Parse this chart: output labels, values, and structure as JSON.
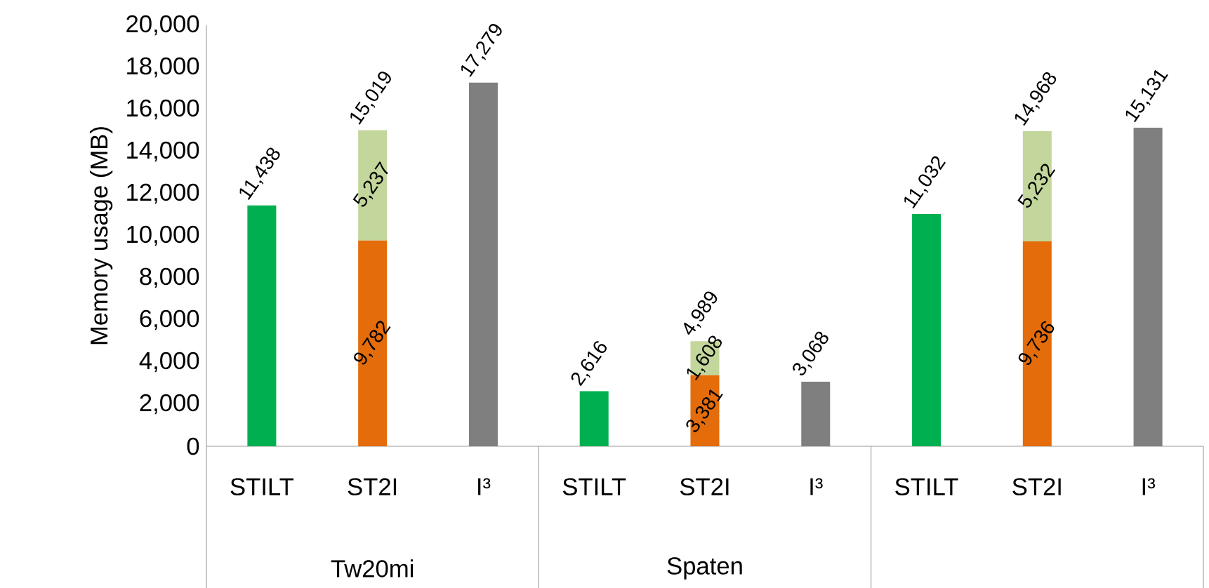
{
  "chart_data": {
    "type": "bar",
    "ylabel": "Memory usage (MB)",
    "stacked": true,
    "categories": [
      "STILT",
      "ST2I",
      "I³",
      "STILT",
      "ST2I",
      "I³",
      "STILT",
      "ST2I",
      "I³"
    ],
    "series": [
      {
        "color": "#00b050",
        "values": [
          11438,
          null,
          null,
          2616,
          null,
          null,
          11032,
          null,
          null
        ],
        "value_labels": [
          "11,438",
          null,
          null,
          "2,616",
          null,
          null,
          "11,032",
          null,
          null
        ]
      },
      {
        "color": "#e46c0a",
        "values": [
          null,
          9782,
          null,
          null,
          3381,
          null,
          null,
          9736,
          null
        ],
        "value_labels": [
          null,
          "9,782",
          null,
          null,
          "3,381",
          null,
          null,
          "9,736",
          null
        ]
      },
      {
        "color": "#c3d69b",
        "values": [
          null,
          5237,
          null,
          null,
          1608,
          null,
          null,
          5232,
          null
        ],
        "value_labels": [
          null,
          "5,237",
          null,
          null,
          "1,608",
          null,
          null,
          "5,232",
          null
        ]
      },
      {
        "color": "#7f7f7f",
        "values": [
          null,
          null,
          17279,
          null,
          null,
          3068,
          null,
          null,
          15131
        ],
        "value_labels": [
          null,
          null,
          "17,279",
          null,
          null,
          "3,068",
          null,
          null,
          "15,131"
        ]
      }
    ],
    "totals": [
      null,
      "15,019",
      null,
      null,
      "4,989",
      null,
      null,
      "14,968",
      null
    ],
    "ylim": [
      0,
      20000
    ],
    "yticks": [
      {
        "value": 0,
        "label": "0"
      },
      {
        "value": 2000,
        "label": "2,000"
      },
      {
        "value": 4000,
        "label": "4,000"
      },
      {
        "value": 6000,
        "label": "6,000"
      },
      {
        "value": 8000,
        "label": "8,000"
      },
      {
        "value": 10000,
        "label": "10,000"
      },
      {
        "value": 12000,
        "label": "12,000"
      },
      {
        "value": 14000,
        "label": "14,000"
      },
      {
        "value": 16000,
        "label": "16,000"
      },
      {
        "value": 18000,
        "label": "18,000"
      },
      {
        "value": 20000,
        "label": "20,000"
      }
    ],
    "annotations": [
      "Tw20mi",
      "Spaten"
    ]
  }
}
